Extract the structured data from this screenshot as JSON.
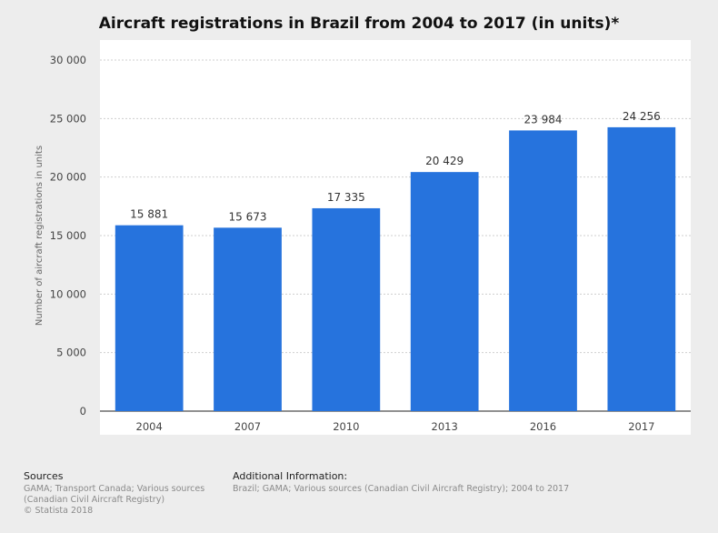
{
  "chart_data": {
    "type": "bar",
    "title": "Aircraft registrations in Brazil from 2004 to 2017 (in units)*",
    "categories": [
      "2004",
      "2007",
      "2010",
      "2013",
      "2016",
      "2017"
    ],
    "values": [
      15881,
      15673,
      17335,
      20429,
      23984,
      24256
    ],
    "value_labels": [
      "15 881",
      "15 673",
      "17 335",
      "20 429",
      "23 984",
      "24 256"
    ],
    "xlabel": "",
    "ylabel": "Number of aircraft registrations in units",
    "ylim": [
      0,
      30000
    ],
    "yticks": [
      0,
      5000,
      10000,
      15000,
      20000,
      25000,
      30000
    ],
    "ytick_labels": [
      "0",
      "5 000",
      "10 000",
      "15 000",
      "20 000",
      "25 000",
      "30 000"
    ],
    "grid": true,
    "bar_color": "#2673dd"
  },
  "footer": {
    "sources_heading": "Sources",
    "sources_text": "GAMA; Transport Canada; Various sources (Canadian Civil Aircraft Registry)",
    "copyright": "© Statista 2018",
    "info_heading": "Additional Information:",
    "info_text": "Brazil; GAMA; Various sources (Canadian Civil Aircraft Registry); 2004 to 2017"
  }
}
